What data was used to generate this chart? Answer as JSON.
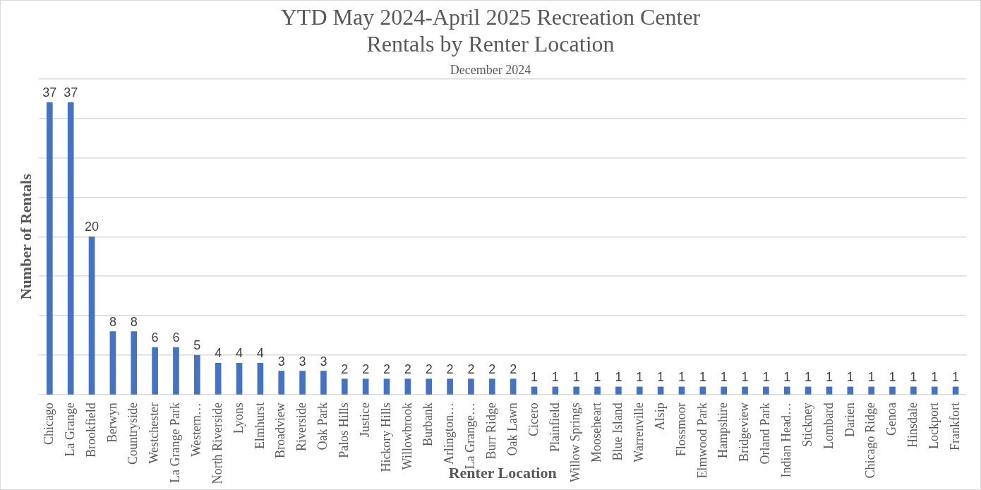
{
  "chart_data": {
    "type": "bar",
    "title": [
      "YTD May 2024-April 2025 Recreation Center",
      "Rentals by Renter Location"
    ],
    "subtitle": "December 2024",
    "xlabel": "Renter Location",
    "ylabel": "Number of Rentals",
    "categories": [
      "Chicago",
      "La Grange",
      "Brookfield",
      "Berwyn",
      "Countryside",
      "Westchester",
      "La Grange Park",
      "Western…",
      "North Riverside",
      "Lyons",
      "Elmhurst",
      "Broadview",
      "Riverside",
      "Oak Park",
      "Palos Hills",
      "Justice",
      "Hickory Hills",
      "Willowbrook",
      "Burbank",
      "Arlington…",
      "La Grange…",
      "Burr Ridge",
      "Oak Lawn",
      "Cicero",
      "Plainfield",
      "Willow Springs",
      "Mooseheart",
      "Blue Island",
      "Warrenville",
      "Alsip",
      "Flossmoor",
      "Elmwood Park",
      "Hampshire",
      "Bridgeview",
      "Orland Park",
      "Indian Head…",
      "Stickney",
      "Lombard",
      "Darien",
      "Chicago Ridge",
      "Genoa",
      "Hinsdale",
      "Lockport",
      "Frankfort"
    ],
    "values": [
      37,
      37,
      20,
      8,
      8,
      6,
      6,
      5,
      4,
      4,
      4,
      3,
      3,
      3,
      2,
      2,
      2,
      2,
      2,
      2,
      2,
      2,
      2,
      1,
      1,
      1,
      1,
      1,
      1,
      1,
      1,
      1,
      1,
      1,
      1,
      1,
      1,
      1,
      1,
      1,
      1,
      1,
      1,
      1
    ],
    "color": "#4472c4",
    "data_labels": true,
    "ylim": [
      0,
      40
    ],
    "yticks": [
      {
        "value": 0,
        "label": null
      },
      {
        "value": 5,
        "label": null
      },
      {
        "value": 10,
        "label": null
      },
      {
        "value": 15,
        "label": null
      },
      {
        "value": 20,
        "label": null
      },
      {
        "value": 25,
        "label": null
      },
      {
        "value": 30,
        "label": null
      },
      {
        "value": 35,
        "label": null
      },
      {
        "value": 40,
        "label": null
      }
    ],
    "grid": "y",
    "tick_labels": "x",
    "legend": false
  }
}
